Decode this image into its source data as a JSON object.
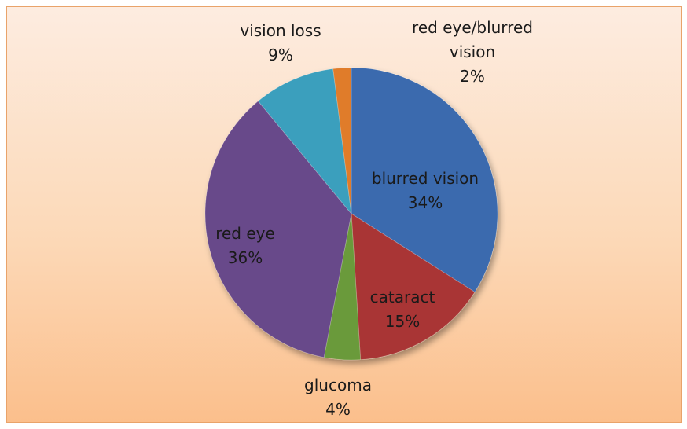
{
  "chart_data": {
    "type": "pie",
    "categories": [
      "blurred vision",
      "cataract",
      "glucoma",
      "red eye",
      "vision loss",
      "red eye/blurred vision"
    ],
    "values": [
      34,
      15,
      4,
      36,
      9,
      2
    ],
    "value_labels": [
      "34%",
      "15%",
      "4%",
      "36%",
      "9%",
      "2%"
    ],
    "colors": [
      "#3a6aae",
      "#a93434",
      "#6b9a3a",
      "#684a8a",
      "#3a9fbd",
      "#e07c2c"
    ]
  }
}
